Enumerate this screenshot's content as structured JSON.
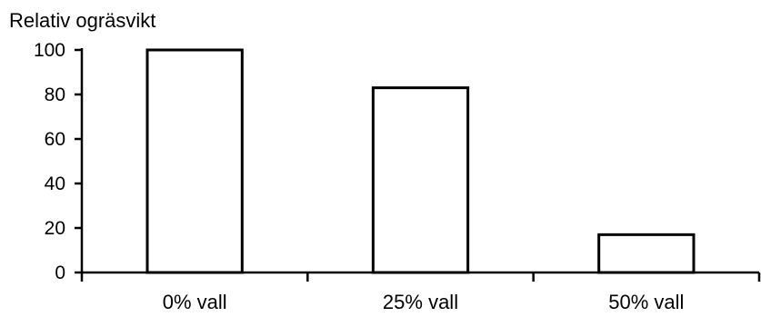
{
  "chart_data": {
    "type": "bar",
    "ylabel": "Relativ ogräsvikt",
    "xlabel": "",
    "categories": [
      "0% vall",
      "25% vall",
      "50% vall"
    ],
    "values": [
      100,
      83,
      17
    ],
    "ylim": [
      0,
      100
    ],
    "yticks": [
      "0",
      "20",
      "40",
      "60",
      "80",
      "100"
    ],
    "grid": false,
    "legend": "none",
    "colors": {
      "bar_fill": "#ffffff",
      "bar_stroke": "#000000",
      "axis": "#000000"
    }
  }
}
